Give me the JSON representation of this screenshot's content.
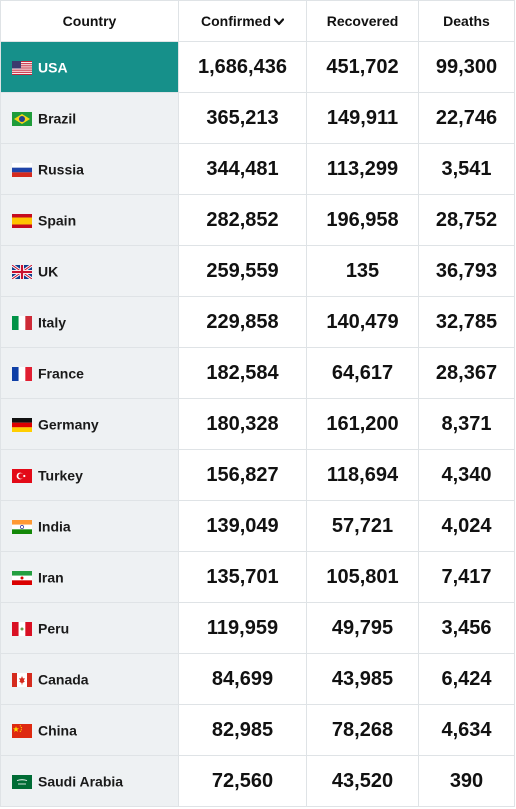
{
  "header": {
    "country": "Country",
    "confirmed": "Confirmed",
    "recovered": "Recovered",
    "deaths": "Deaths",
    "sort_icon": "chevron-down-icon"
  },
  "colors": {
    "selected_row": "#16908a",
    "country_cell": "#eef1f3",
    "grid": "#dfe3e6"
  },
  "rows": [
    {
      "flag": "usa-flag-icon",
      "country": "USA",
      "confirmed": "1,686,436",
      "recovered": "451,702",
      "deaths": "99,300"
    },
    {
      "flag": "brazil-flag-icon",
      "country": "Brazil",
      "confirmed": "365,213",
      "recovered": "149,911",
      "deaths": "22,746"
    },
    {
      "flag": "russia-flag-icon",
      "country": "Russia",
      "confirmed": "344,481",
      "recovered": "113,299",
      "deaths": "3,541"
    },
    {
      "flag": "spain-flag-icon",
      "country": "Spain",
      "confirmed": "282,852",
      "recovered": "196,958",
      "deaths": "28,752"
    },
    {
      "flag": "uk-flag-icon",
      "country": "UK",
      "confirmed": "259,559",
      "recovered": "135",
      "deaths": "36,793"
    },
    {
      "flag": "italy-flag-icon",
      "country": "Italy",
      "confirmed": "229,858",
      "recovered": "140,479",
      "deaths": "32,785"
    },
    {
      "flag": "france-flag-icon",
      "country": "France",
      "confirmed": "182,584",
      "recovered": "64,617",
      "deaths": "28,367"
    },
    {
      "flag": "germany-flag-icon",
      "country": "Germany",
      "confirmed": "180,328",
      "recovered": "161,200",
      "deaths": "8,371"
    },
    {
      "flag": "turkey-flag-icon",
      "country": "Turkey",
      "confirmed": "156,827",
      "recovered": "118,694",
      "deaths": "4,340"
    },
    {
      "flag": "india-flag-icon",
      "country": "India",
      "confirmed": "139,049",
      "recovered": "57,721",
      "deaths": "4,024"
    },
    {
      "flag": "iran-flag-icon",
      "country": "Iran",
      "confirmed": "135,701",
      "recovered": "105,801",
      "deaths": "7,417"
    },
    {
      "flag": "peru-flag-icon",
      "country": "Peru",
      "confirmed": "119,959",
      "recovered": "49,795",
      "deaths": "3,456"
    },
    {
      "flag": "canada-flag-icon",
      "country": "Canada",
      "confirmed": "84,699",
      "recovered": "43,985",
      "deaths": "6,424"
    },
    {
      "flag": "china-flag-icon",
      "country": "China",
      "confirmed": "82,985",
      "recovered": "78,268",
      "deaths": "4,634"
    },
    {
      "flag": "saudi-arabia-flag-icon",
      "country": "Saudi Arabia",
      "confirmed": "72,560",
      "recovered": "43,520",
      "deaths": "390"
    }
  ]
}
